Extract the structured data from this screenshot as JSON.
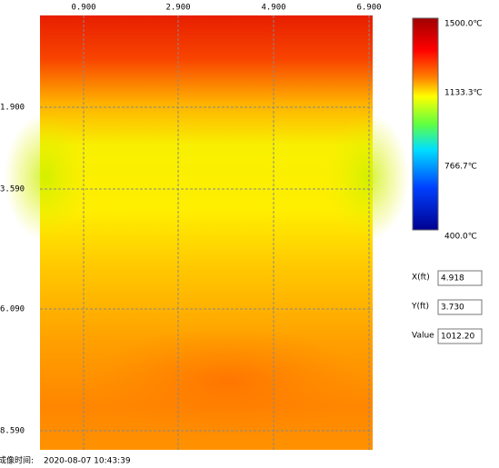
{
  "heatmap": {
    "x_ticks": [
      "0.900",
      "2.900",
      "4.900",
      "6.900"
    ],
    "y_ticks": [
      "1.900",
      "3.590",
      "6.090",
      "8.590"
    ]
  },
  "colorbar": {
    "labels": [
      "1500.0℃",
      "1133.3℃",
      "766.7℃",
      "400.0℃"
    ]
  },
  "fields": [
    {
      "label": "X(ft)",
      "value": "4.918"
    },
    {
      "label": "Y(ft)",
      "value": "3.730"
    },
    {
      "label": "Value",
      "value": "1012.20"
    }
  ],
  "footer": {
    "label": "成像时间:",
    "time": "2020-08-07 10:43:39"
  }
}
